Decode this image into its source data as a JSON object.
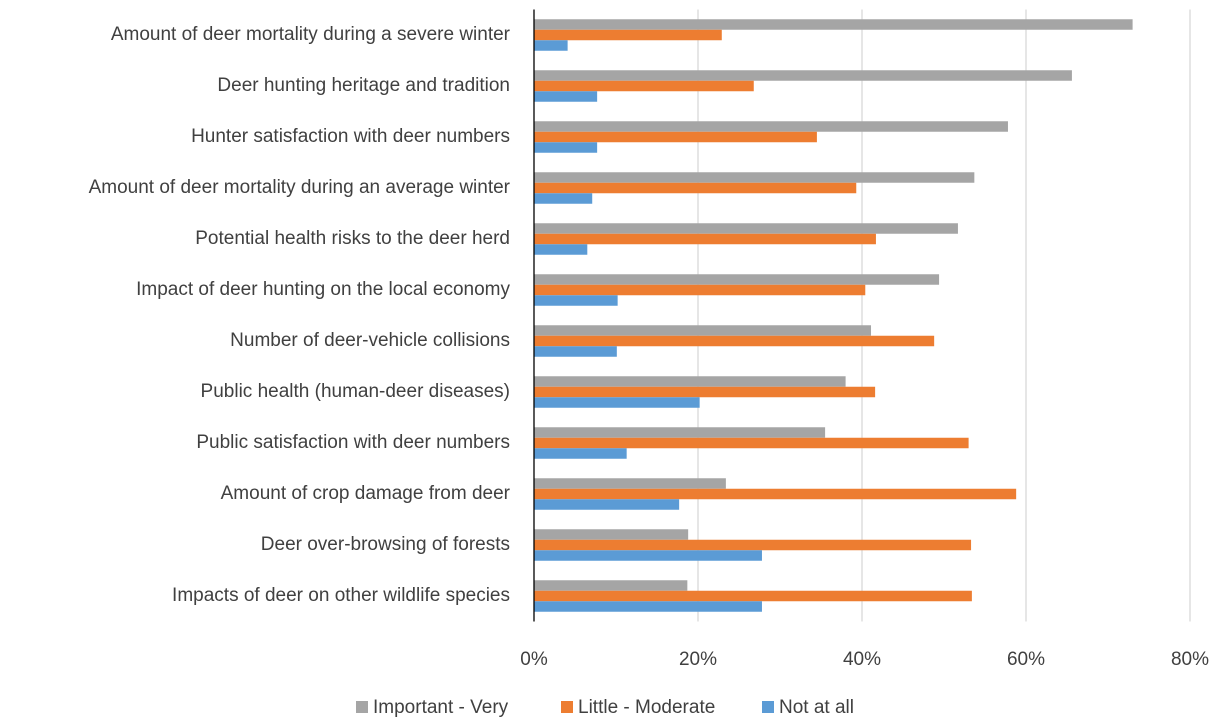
{
  "chart_data": {
    "type": "hbar",
    "categories": [
      "Amount of deer mortality during a severe winter",
      "Deer hunting heritage and tradition",
      "Hunter satisfaction with deer numbers",
      "Amount of deer mortality during an average winter",
      "Potential health risks to the deer herd",
      "Impact of deer hunting on the local economy",
      "Number of deer-vehicle collisions",
      "Public health (human-deer diseases)",
      "Public satisfaction with deer numbers",
      "Amount of crop damage from deer",
      "Deer over-browsing of forests",
      "Impacts of deer on other wildlife species"
    ],
    "series": [
      {
        "name": "Important - Very",
        "color": "#a5a5a5",
        "values": [
          73.0,
          65.6,
          57.8,
          53.7,
          51.7,
          49.4,
          41.1,
          38.0,
          35.5,
          23.4,
          18.8,
          18.7
        ]
      },
      {
        "name": "Little - Moderate",
        "color": "#ed7d31",
        "values": [
          22.9,
          26.8,
          34.5,
          39.3,
          41.7,
          40.4,
          48.8,
          41.6,
          53.0,
          58.8,
          53.3,
          53.4
        ]
      },
      {
        "name": "Not at all",
        "color": "#5b9bd5",
        "values": [
          4.1,
          7.7,
          7.7,
          7.1,
          6.5,
          10.2,
          10.1,
          20.2,
          11.3,
          17.7,
          27.8,
          27.8
        ]
      }
    ],
    "xlim": [
      0,
      80
    ],
    "xticks": [
      {
        "value": 0,
        "label": "0%"
      },
      {
        "value": 20,
        "label": "20%"
      },
      {
        "value": 40,
        "label": "40%"
      },
      {
        "value": 60,
        "label": "60%"
      },
      {
        "value": 80,
        "label": "80%"
      }
    ],
    "grid": true,
    "legend": "bottom"
  }
}
